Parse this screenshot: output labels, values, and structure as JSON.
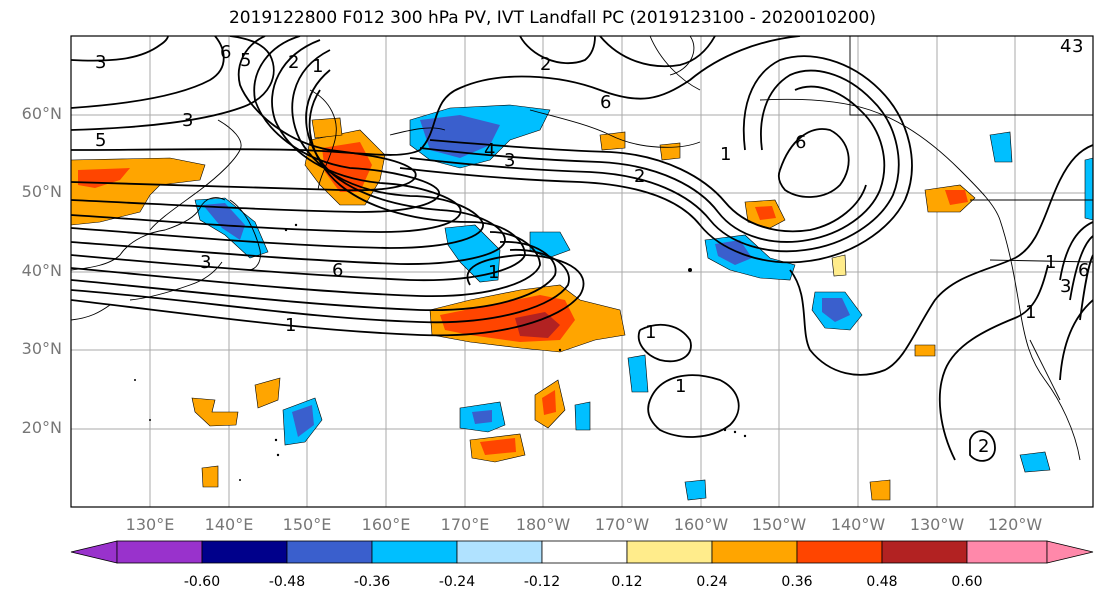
{
  "title": "2019122800 F012 300 hPa PV, IVT Landfall PC (2019123100 - 2020010200)",
  "map": {
    "lat_labels": [
      "60°N",
      "50°N",
      "40°N",
      "30°N",
      "20°N"
    ],
    "lon_labels": [
      "130°E",
      "140°E",
      "150°E",
      "160°E",
      "170°E",
      "180°W",
      "170°W",
      "160°W",
      "150°W",
      "140°W",
      "130°W",
      "120°W"
    ],
    "contour_labels": [
      "3",
      "6",
      "5",
      "2",
      "1",
      "3",
      "5",
      "3",
      "6",
      "4",
      "3",
      "1",
      "6",
      "1",
      "2",
      "2",
      "6",
      "1",
      "1",
      "1",
      "2",
      "1",
      "3",
      "1",
      "4",
      "6",
      "3"
    ]
  },
  "colorbar": {
    "tick_labels": [
      "-0.60",
      "-0.48",
      "-0.36",
      "-0.24",
      "-0.12",
      "0.12",
      "0.24",
      "0.36",
      "0.48",
      "0.60"
    ],
    "colors": [
      "#9932cc",
      "#00008b",
      "#3a5fcd",
      "#00bfff",
      "#b0e2ff",
      "#ffffff",
      "#ffec8b",
      "#ffa500",
      "#ff4500",
      "#b22222",
      "#ff88aa"
    ]
  }
}
